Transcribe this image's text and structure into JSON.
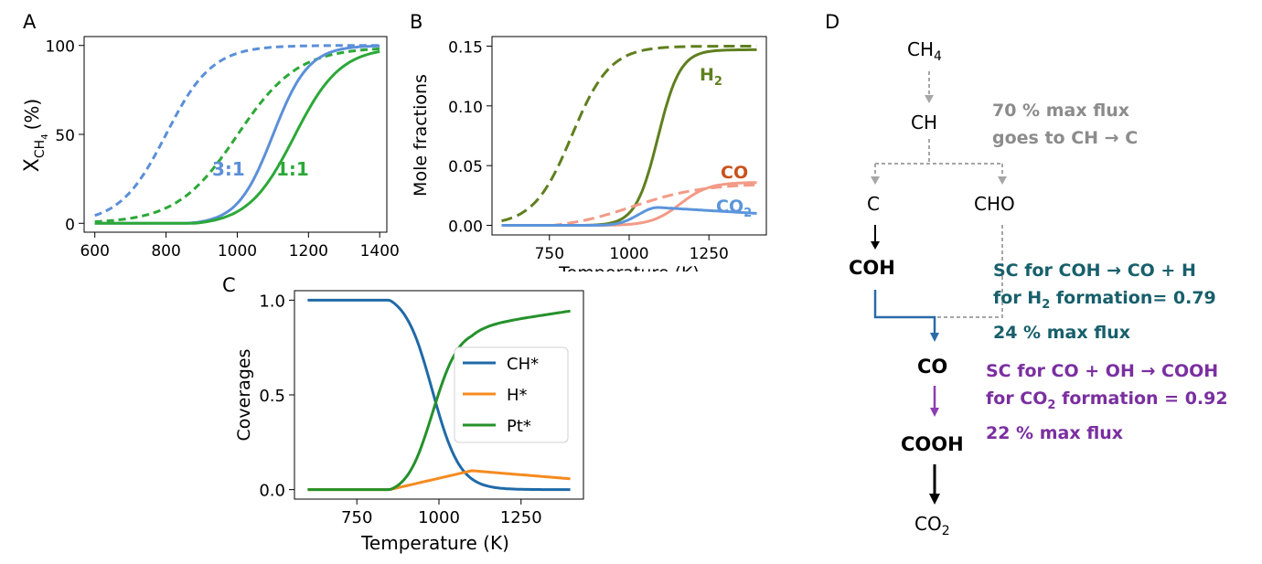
{
  "panels": {
    "a": "A",
    "b": "B",
    "c": "C",
    "d": "D"
  },
  "colors": {
    "blue31": "#5b8fd9",
    "green11": "#2ca838",
    "darkolive": "#5f7f1e",
    "salmon": "#f39a86",
    "coBlue": "#5b95dc",
    "coBrown": "#c8521c",
    "tabBlue": "#1f6aa8",
    "tabOrange": "#f58b1f",
    "tabGreen": "#24912b",
    "gray": "#8c8c8c",
    "teal": "#175f6b",
    "purple": "#7a2fa0"
  },
  "chart_data": [
    {
      "id": "A",
      "type": "line",
      "title": "",
      "xlabel": "",
      "ylabel_main": "X",
      "ylabel_sub": "CH",
      "ylabel_subsub": "4",
      "ylabel_unit": "(%)",
      "xlim": [
        570,
        1420
      ],
      "ylim": [
        -5,
        105
      ],
      "xticks": [
        "600",
        "800",
        "1000",
        "1200",
        "1400"
      ],
      "yticks": [
        "0",
        "50",
        "100"
      ],
      "annotations": [
        {
          "text": "3:1",
          "x": 1000,
          "y": 28,
          "color": "blue31"
        },
        {
          "text": "1:1",
          "x": 1150,
          "y": 28,
          "color": "green11"
        }
      ],
      "series": [
        {
          "name": "3:1 dashed",
          "color": "blue31",
          "dash": true,
          "mid": 800,
          "width": 65,
          "max": 100
        },
        {
          "name": "1:1 dashed",
          "color": "green11",
          "dash": true,
          "mid": 1000,
          "width": 85,
          "max": 99
        },
        {
          "name": "3:1 solid",
          "color": "blue31",
          "dash": false,
          "mid": 1100,
          "width": 50,
          "max": 100,
          "floor": 860
        },
        {
          "name": "1:1 solid",
          "color": "green11",
          "dash": false,
          "mid": 1160,
          "width": 65,
          "max": 99,
          "floor": 880
        }
      ]
    },
    {
      "id": "B",
      "type": "line",
      "title": "",
      "xlabel": "Temperature (K)",
      "ylabel": "Mole fractions",
      "xlim": [
        570,
        1430
      ],
      "ylim": [
        -0.008,
        0.158
      ],
      "xticks": [
        "750",
        "1000",
        "1250"
      ],
      "yticks": [
        "0.00",
        "0.05",
        "0.10",
        "0.15"
      ],
      "labels": [
        {
          "text": "H",
          "sub": "2",
          "color": "darkolive"
        },
        {
          "text": "CO",
          "sub": "",
          "color": "coBrown"
        },
        {
          "text": "CO",
          "sub": "2",
          "color": "coBlue"
        }
      ],
      "series": [
        {
          "name": "H2 dashed",
          "color": "darkolive",
          "dash": true
        },
        {
          "name": "H2 solid",
          "color": "darkolive",
          "dash": false
        },
        {
          "name": "CO dashed",
          "color": "salmon",
          "dash": true
        },
        {
          "name": "CO solid",
          "color": "salmon",
          "dash": false
        },
        {
          "name": "CO2 solid",
          "color": "coBlue",
          "dash": false
        }
      ]
    },
    {
      "id": "C",
      "type": "line",
      "title": "",
      "xlabel": "Temperature (K)",
      "ylabel": "Coverages",
      "xlim": [
        560,
        1440
      ],
      "ylim": [
        -0.05,
        1.05
      ],
      "xticks": [
        "750",
        "1000",
        "1250"
      ],
      "yticks": [
        "0.0",
        "0.5",
        "1.0"
      ],
      "legend_position": "center-right",
      "series": [
        {
          "name": "CH*",
          "color": "tabBlue"
        },
        {
          "name": "H*",
          "color": "tabOrange"
        },
        {
          "name": "Pt*",
          "color": "tabGreen"
        }
      ]
    }
  ],
  "diagram": {
    "nodes": {
      "ch4": {
        "text": "CH",
        "sub": "4"
      },
      "ch": {
        "text": "CH"
      },
      "c": {
        "text": "C"
      },
      "cho": {
        "text": "CHO"
      },
      "coh": {
        "text": "COH"
      },
      "co": {
        "text": "CO"
      },
      "cooh": {
        "text": "COOH"
      },
      "co2": {
        "text": "CO",
        "sub": "2"
      }
    },
    "note_gray": {
      "line1": "70 % max flux",
      "line2": "goes to CH → C"
    },
    "note_teal": {
      "line1": "SC for COH → CO + H",
      "line2_pre": "for H",
      "line2_sub": "2",
      "line2_post": " formation= 0.79",
      "line3": "24 % max flux"
    },
    "note_purple": {
      "line1": "SC for CO + OH → COOH",
      "line2_pre": "for CO",
      "line2_sub": "2",
      "line2_post": " formation = 0.92",
      "line3": "22 % max flux"
    }
  }
}
